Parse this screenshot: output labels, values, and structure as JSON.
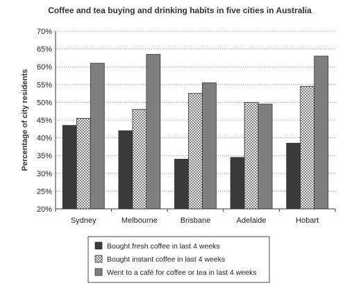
{
  "chart_data": {
    "type": "bar",
    "title": "Coffee and tea buying and drinking habits in five cities in Australia",
    "xlabel": "",
    "ylabel": "Percentage of city residents",
    "ylim": [
      20,
      70
    ],
    "yticks": [
      "20%",
      "25%",
      "30%",
      "35%",
      "40%",
      "45%",
      "50%",
      "55%",
      "60%",
      "65%",
      "70%"
    ],
    "categories": [
      "Sydney",
      "Melbourne",
      "Brisbane",
      "Adelaide",
      "Hobart"
    ],
    "series": [
      {
        "name": "Bought fresh coffee in last 4 weeks",
        "values": [
          43.5,
          42,
          34,
          34.5,
          38.5
        ],
        "pattern": "solid-dark"
      },
      {
        "name": "Bought instant coffee in last 4 weeks",
        "values": [
          45.5,
          48,
          52.5,
          50,
          54.5
        ],
        "pattern": "crosshatch"
      },
      {
        "name": "Went to a café for coffee or tea in last 4 weeks",
        "values": [
          61,
          63.5,
          55.5,
          49.5,
          63
        ],
        "pattern": "solid-grey"
      }
    ],
    "grid": true,
    "legend_position": "bottom",
    "colors": {
      "dark": "#3a3a3a",
      "grey": "#7f7f7f",
      "hatch": "#555555",
      "grid": "#9a9a9a"
    }
  }
}
